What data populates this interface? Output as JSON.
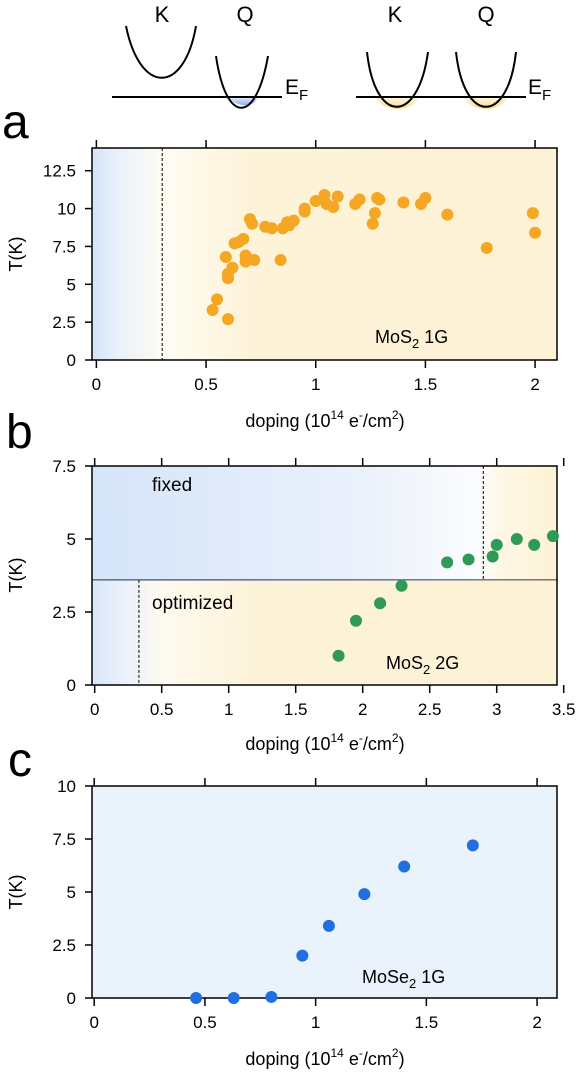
{
  "schematic": {
    "left": {
      "k": "K",
      "q": "Q",
      "ef_main": "E",
      "ef_sub": "F"
    },
    "right": {
      "k": "K",
      "q": "Q",
      "ef_main": "E",
      "ef_sub": "F"
    }
  },
  "chart_data": [
    {
      "panel": "a",
      "type": "scatter",
      "ylabel": "T(K)",
      "xlabel": {
        "pre": "doping (10",
        "sup1": "14",
        "mid": " e",
        "sup2": "-",
        "mid2": "/cm",
        "sup3": "2",
        "post": ")"
      },
      "xlim": [
        -0.02,
        2.1
      ],
      "ylim": [
        0,
        14
      ],
      "xticks": [
        "0",
        "0.5",
        "1",
        "1.5",
        "2"
      ],
      "xtick_values": [
        0,
        0.5,
        1,
        1.5,
        2
      ],
      "yticks": [
        "0",
        "2.5",
        "5",
        "7.5",
        "10",
        "12.5"
      ],
      "ytick_values": [
        0,
        2.5,
        5,
        7.5,
        10,
        12.5
      ],
      "annotation": {
        "main": "MoS",
        "sub": "2",
        "post": " 1G"
      },
      "threshold_x": 0.3,
      "marker_color": "#f5a623",
      "regions": {
        "left": "#dbe8fb",
        "right": "#fdf4da"
      },
      "series": [
        {
          "x": [
            0.53,
            0.55,
            0.59,
            0.6,
            0.6,
            0.6,
            0.62,
            0.63,
            0.65,
            0.67,
            0.68,
            0.68,
            0.69,
            0.7,
            0.71,
            0.72,
            0.77,
            0.8,
            0.84,
            0.85,
            0.87,
            0.88,
            0.9,
            0.95,
            0.95,
            1.0,
            1.04,
            1.05,
            1.08,
            1.1,
            1.18,
            1.2,
            1.26,
            1.27,
            1.28,
            1.29,
            1.4,
            1.48,
            1.5,
            1.6,
            1.78,
            1.99,
            2.0
          ],
          "y": [
            3.3,
            4.0,
            6.8,
            5.4,
            5.7,
            2.7,
            6.1,
            7.7,
            7.8,
            8.0,
            6.5,
            6.9,
            6.7,
            9.3,
            9.0,
            6.6,
            8.8,
            8.7,
            6.6,
            8.7,
            9.1,
            8.9,
            9.2,
            9.8,
            10.0,
            10.5,
            10.9,
            10.3,
            10.1,
            10.8,
            10.3,
            10.6,
            9.0,
            9.7,
            10.7,
            10.6,
            10.4,
            10.3,
            10.7,
            9.6,
            7.4,
            9.7,
            8.4
          ]
        }
      ]
    },
    {
      "panel": "b",
      "type": "scatter",
      "ylabel": "T(K)",
      "xlabel": {
        "pre": "doping (10",
        "sup1": "14",
        "mid": " e",
        "sup2": "-",
        "mid2": "/cm",
        "sup3": "2",
        "post": ")"
      },
      "xlim": [
        -0.02,
        3.45
      ],
      "ylim": [
        0,
        7.5
      ],
      "xticks": [
        "0",
        "0.5",
        "1",
        "1.5",
        "2",
        "2.5",
        "3",
        "3.5"
      ],
      "xtick_values": [
        0,
        0.5,
        1,
        1.5,
        2,
        2.5,
        3,
        3.5
      ],
      "yticks": [
        "0",
        "2.5",
        "5",
        "7.5"
      ],
      "ytick_values": [
        0,
        2.5,
        5,
        7.5
      ],
      "annotation": {
        "main": "MoS",
        "sub": "2",
        "post": " 2G"
      },
      "label_upper": "fixed",
      "label_lower": "optimized",
      "divider_y": 3.6,
      "threshold_upper_x": 2.9,
      "threshold_lower_x": 0.33,
      "marker_color": "#2e9a55",
      "series": [
        {
          "x": [
            1.82,
            1.95,
            2.13,
            2.29,
            2.63,
            2.79,
            2.97,
            3.0,
            3.15,
            3.28,
            3.42
          ],
          "y": [
            1.0,
            2.2,
            2.8,
            3.4,
            4.2,
            4.3,
            4.4,
            4.8,
            5.0,
            4.8,
            5.1
          ]
        }
      ]
    },
    {
      "panel": "c",
      "type": "scatter",
      "ylabel": "T(K)",
      "xlabel": {
        "pre": "doping (10",
        "sup1": "14",
        "mid": " e",
        "sup2": "-",
        "mid2": "/cm",
        "sup3": "2",
        "post": ")"
      },
      "xlim": [
        -0.01,
        2.09
      ],
      "ylim": [
        0,
        10
      ],
      "xticks": [
        "0",
        "0.5",
        "1",
        "1.5",
        "2"
      ],
      "xtick_values": [
        0,
        0.5,
        1,
        1.5,
        2
      ],
      "yticks": [
        "0",
        "2.5",
        "5",
        "7.5",
        "10"
      ],
      "ytick_values": [
        0,
        2.5,
        5,
        7.5,
        10
      ],
      "annotation": {
        "main": "MoSe",
        "sub": "2",
        "post": " 1G"
      },
      "marker_color": "#1f6fe0",
      "series": [
        {
          "x": [
            0.46,
            0.63,
            0.8,
            0.94,
            1.06,
            1.22,
            1.4,
            1.71
          ],
          "y": [
            0.0,
            0.0,
            0.05,
            2.0,
            3.4,
            4.9,
            6.2,
            7.2
          ]
        }
      ]
    }
  ],
  "panel_labels": [
    "a",
    "b",
    "c"
  ]
}
